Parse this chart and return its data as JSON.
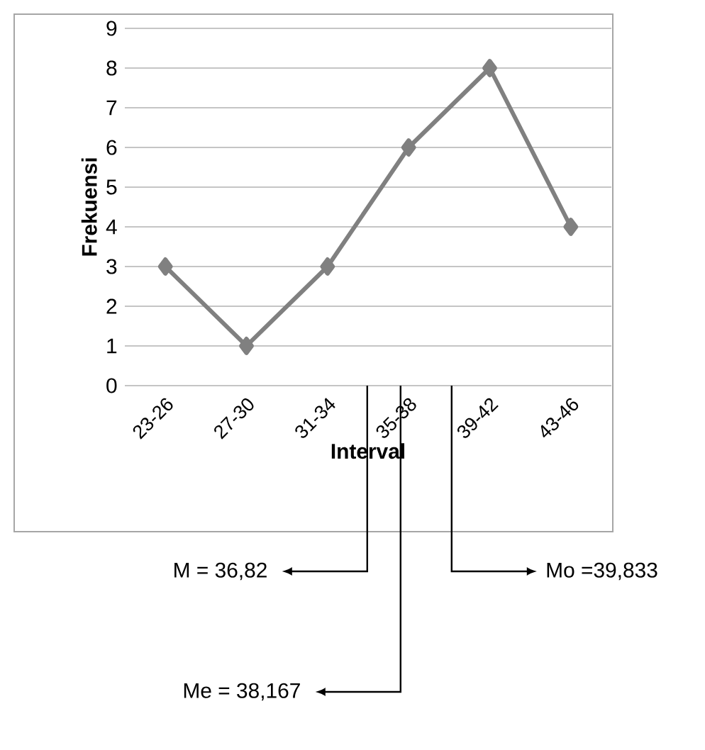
{
  "chart_data": {
    "type": "line",
    "xlabel": "Interval",
    "ylabel": "Frekuensi",
    "categories": [
      "23-26",
      "27-30",
      "31-34",
      "35-38",
      "39-42",
      "43-46"
    ],
    "series": [
      {
        "color": "#808080",
        "values": [
          3,
          1,
          3,
          6,
          8,
          4
        ]
      }
    ],
    "ylim": [
      0,
      9
    ],
    "yticks": [
      0,
      1,
      2,
      3,
      4,
      5,
      6,
      7,
      8,
      9
    ],
    "grid": "y",
    "marker": "diamond",
    "line_style": "solid",
    "annotations": [
      "M = 36,82",
      "Me = 38,167",
      "Mo =39,833"
    ]
  }
}
